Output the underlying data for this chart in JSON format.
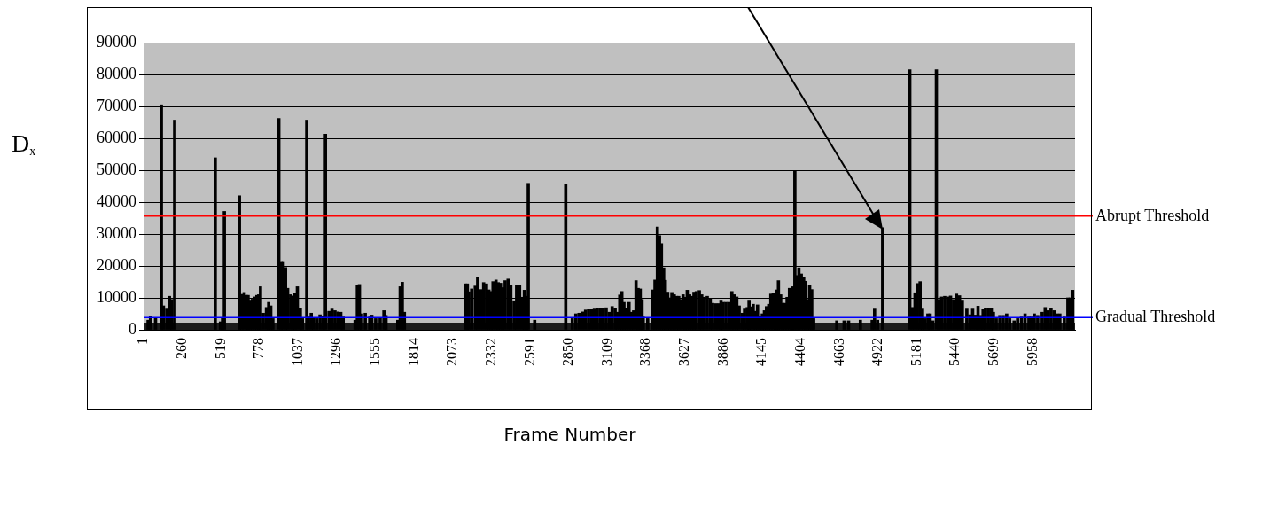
{
  "chart_data": {
    "type": "bar",
    "ylabel": "D$_{x}$",
    "xlabel": "Frame Number",
    "xlim": [
      0,
      6240
    ],
    "xticks": [
      1,
      260,
      519,
      778,
      1037,
      1296,
      1555,
      1814,
      2073,
      2332,
      2591,
      2850,
      3109,
      3368,
      3627,
      3886,
      4145,
      4404,
      4663,
      4922,
      5181,
      5440,
      5699,
      5958
    ],
    "ylim": [
      0,
      90000
    ],
    "yticks": [
      0,
      10000,
      20000,
      30000,
      40000,
      50000,
      60000,
      70000,
      80000,
      90000
    ],
    "grid": "y",
    "legend": false,
    "ref_lines": [
      {
        "axis": "y",
        "value": 35600,
        "label": "Abrupt Threshold",
        "color": "#ff0000"
      },
      {
        "axis": "y",
        "value": 3800,
        "label": "Gradual Threshold",
        "color": "#0000ff"
      }
    ],
    "bands": [
      {
        "axis": "y",
        "from": 0,
        "to": 2200,
        "color": "#1c1c1c"
      }
    ],
    "series": [
      {
        "color": "#000000",
        "x": [
          30,
          46,
          80,
          119,
          133,
          155,
          173,
          189,
          199,
          208,
          480,
          515,
          529,
          541,
          642,
          658,
          674,
          688,
          700,
          713,
          729,
          743,
          759,
          771,
          783,
          802,
          823,
          838,
          852,
          866,
          906,
          921,
          935,
          951,
          965,
          985,
          1001,
          1014,
          1030,
          1050,
          1064,
          1093,
          1105,
          1123,
          1139,
          1159,
          1182,
          1203,
          1218,
          1242,
          1262,
          1282,
          1301,
          1321,
          1337,
          1417,
          1432,
          1446,
          1460,
          1485,
          1515,
          1529,
          1555,
          1585,
          1610,
          1624,
          1703,
          1719,
          1733,
          1747,
          2155,
          2169,
          2179,
          2198,
          2222,
          2238,
          2258,
          2278,
          2297,
          2313,
          2327,
          2341,
          2361,
          2376,
          2391,
          2406,
          2422,
          2442,
          2460,
          2482,
          2499,
          2519,
          2539,
          2551,
          2565,
          2577,
          2620,
          2828,
          2872,
          2896,
          2917,
          2941,
          2961,
          2981,
          3000,
          3020,
          3040,
          3060,
          3080,
          3099,
          3119,
          3139,
          3159,
          3172,
          3190,
          3204,
          3218,
          3234,
          3252,
          3268,
          3283,
          3299,
          3313,
          3327,
          3339,
          3347,
          3377,
          3412,
          3426,
          3442,
          3456,
          3469,
          3484,
          3495,
          3511,
          3525,
          3539,
          3555,
          3571,
          3585,
          3600,
          3614,
          3628,
          3642,
          3658,
          3674,
          3687,
          3703,
          3723,
          3739,
          3757,
          3776,
          3796,
          3812,
          3832,
          3852,
          3868,
          3882,
          3901,
          3921,
          3941,
          3957,
          3974,
          3990,
          4010,
          4026,
          4044,
          4056,
          4069,
          4084,
          4099,
          4113,
          4129,
          4145,
          4159,
          4173,
          4188,
          4202,
          4218,
          4232,
          4244,
          4253,
          4268,
          4283,
          4297,
          4311,
          4327,
          4341,
          4351,
          4363,
          4376,
          4390,
          4406,
          4422,
          4436,
          4450,
          4462,
          4476,
          4489,
          4644,
          4693,
          4723,
          4802,
          4881,
          4897,
          4917,
          4951,
          5133,
          5149,
          5168,
          5184,
          5202,
          5218,
          5233,
          5254,
          5269,
          5287,
          5311,
          5327,
          5346,
          5367,
          5386,
          5406,
          5426,
          5446,
          5466,
          5485,
          5515,
          5535,
          5554,
          5574,
          5590,
          5608,
          5624,
          5640,
          5659,
          5679,
          5693,
          5712,
          5736,
          5759,
          5782,
          5802,
          5832,
          5855,
          5881,
          5905,
          5931,
          5947,
          5967,
          5990,
          6020,
          6040,
          6059,
          6079,
          6099,
          6118,
          6138,
          6168,
          6192,
          6208,
          6224
        ],
        "values": [
          3000,
          4200,
          3800,
          70500,
          7500,
          6500,
          10500,
          9500,
          null,
          65700,
          53900,
          2500,
          3800,
          37100,
          42000,
          11100,
          11700,
          10800,
          10800,
          9300,
          9600,
          10300,
          10800,
          11000,
          13500,
          5200,
          7000,
          8600,
          7500,
          3500,
          66200,
          21400,
          21400,
          19500,
          13000,
          11000,
          10600,
          11500,
          13500,
          6800,
          3500,
          65700,
          4000,
          5200,
          3800,
          3500,
          4700,
          4300,
          61300,
          5800,
          6500,
          6000,
          5600,
          5500,
          4000,
          3000,
          13900,
          14200,
          5000,
          5200,
          4000,
          4600,
          3500,
          3600,
          6000,
          4500,
          3000,
          13500,
          14900,
          5500,
          14400,
          14400,
          11900,
          12800,
          13700,
          16300,
          12600,
          14800,
          14400,
          12500,
          12000,
          15100,
          15600,
          14800,
          14600,
          13200,
          15400,
          15900,
          13900,
          9100,
          13900,
          13900,
          10200,
          12400,
          10500,
          45900,
          3000,
          45500,
          3500,
          5000,
          5200,
          5600,
          6200,
          6300,
          6300,
          6500,
          6600,
          6600,
          6600,
          6900,
          5500,
          7300,
          6600,
          5500,
          10900,
          12000,
          8600,
          6800,
          8600,
          5500,
          6000,
          15400,
          13000,
          12800,
          9500,
          4000,
          3500,
          12500,
          15600,
          32200,
          29500,
          27000,
          19400,
          15500,
          11800,
          10000,
          11700,
          11000,
          10500,
          10500,
          9500,
          11000,
          10200,
          12400,
          11000,
          10500,
          11800,
          12000,
          12300,
          11000,
          10200,
          10500,
          9700,
          8300,
          8200,
          8200,
          9300,
          8600,
          8600,
          8600,
          12000,
          11000,
          10300,
          7500,
          5200,
          6500,
          7000,
          9300,
          7200,
          8000,
          5800,
          7800,
          4300,
          5000,
          6000,
          7300,
          8000,
          11200,
          11300,
          11500,
          12500,
          15400,
          11000,
          8300,
          8300,
          10200,
          13000,
          8000,
          13500,
          49800,
          17000,
          19400,
          17500,
          16400,
          15200,
          9500,
          14000,
          12600,
          3500,
          2800,
          2800,
          2800,
          3000,
          3000,
          6500,
          3000,
          32000,
          81500,
          7000,
          11600,
          14500,
          15100,
          6500,
          3500,
          5000,
          5000,
          2800,
          81500,
          9500,
          10300,
          10500,
          10300,
          10600,
          9500,
          11200,
          10700,
          9300,
          6500,
          4700,
          6500,
          4600,
          7400,
          4500,
          6300,
          6800,
          6800,
          6800,
          5500,
          3500,
          4500,
          4500,
          5000,
          3500,
          2800,
          3500,
          4000,
          5000,
          4000,
          4000,
          5000,
          4500,
          5500,
          7000,
          6000,
          6800,
          6000,
          5000,
          5000,
          4000,
          10000,
          10000,
          12400
        ]
      }
    ]
  }
}
